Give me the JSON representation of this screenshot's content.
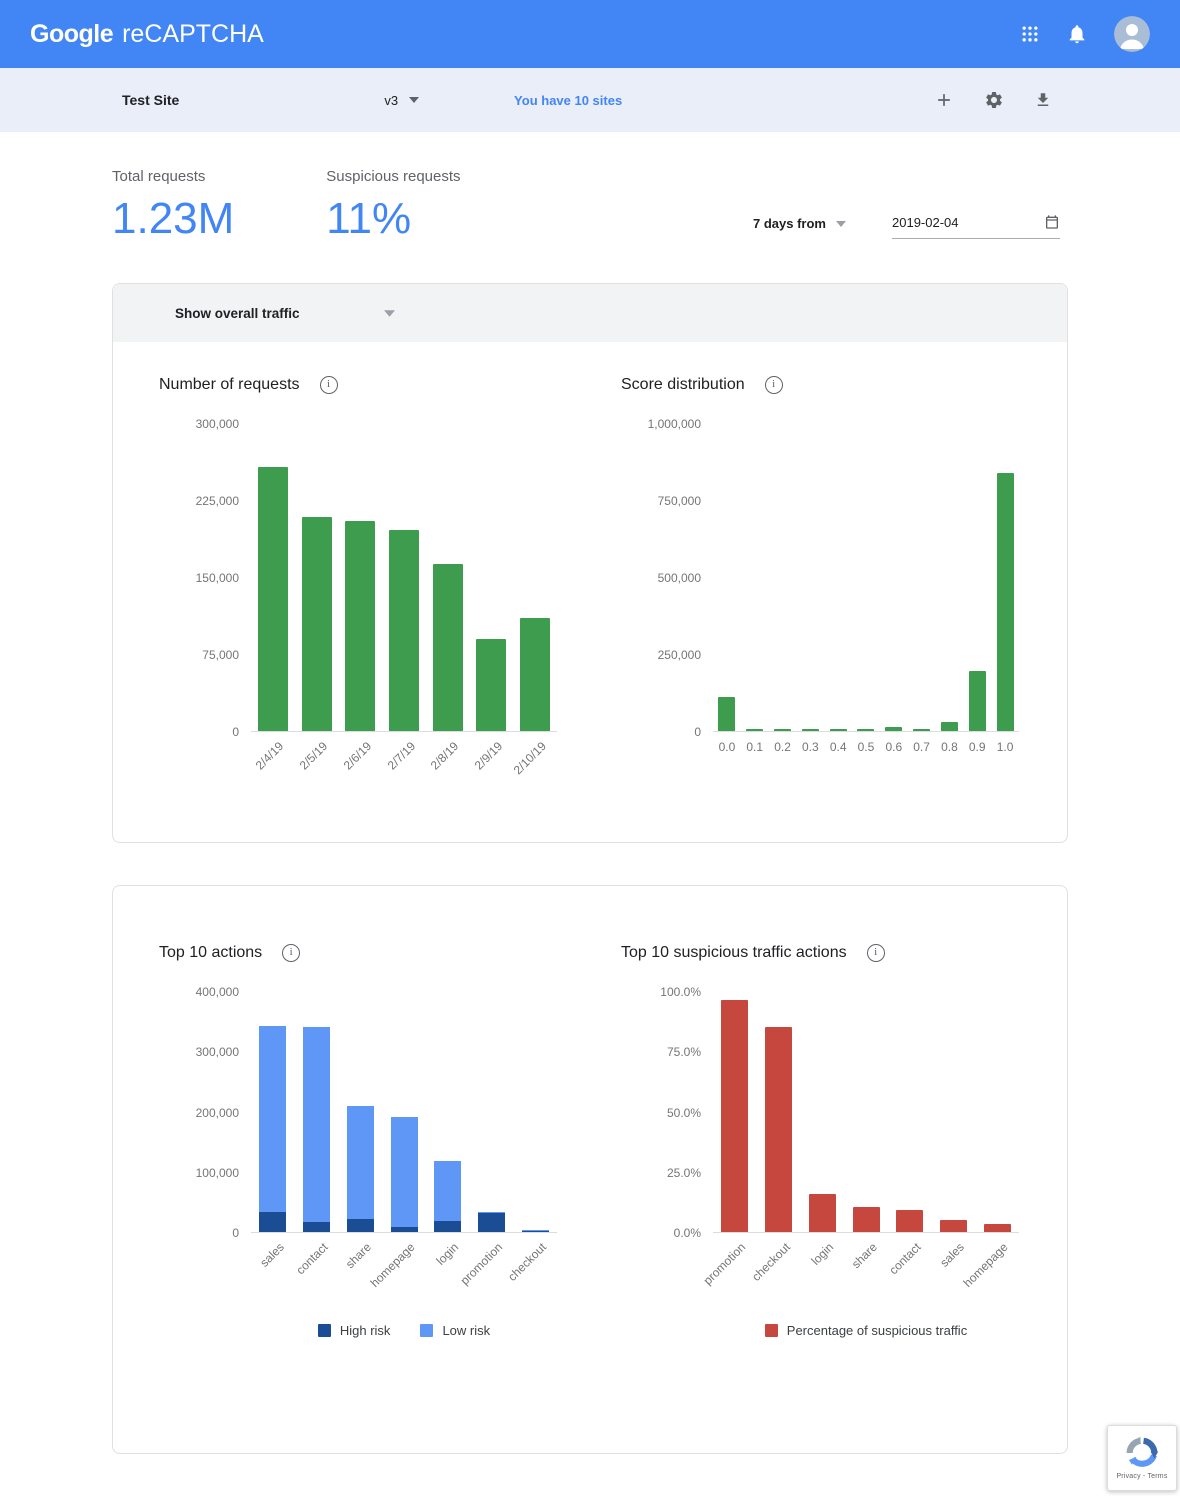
{
  "header": {
    "logo_google": "Google",
    "logo_product": "reCAPTCHA"
  },
  "toolbar": {
    "site_name": "Test Site",
    "version": "v3",
    "sites_link": "You have 10 sites"
  },
  "stats": {
    "total_label": "Total requests",
    "total_value": "1.23M",
    "suspicious_label": "Suspicious requests",
    "suspicious_value": "11%",
    "range_label": "7 days from",
    "date_value": "2019-02-04"
  },
  "filter": {
    "label": "Show overall traffic"
  },
  "badge": {
    "privacy_terms": "Privacy - Terms"
  },
  "colors": {
    "accent": "#4285f4",
    "header_bg": "#4285f4",
    "toolbar_bg": "#e9eef8",
    "green": "#3e9c4f",
    "blue_dark": "#1b4d94",
    "blue_light": "#5e97f6",
    "red": "#c5473e"
  },
  "icons": [
    "apps-grid-icon",
    "notifications-icon",
    "avatar",
    "add-icon",
    "settings-icon",
    "download-icon",
    "dropdown-arrow-icon",
    "calendar-icon",
    "info-icon",
    "recaptcha-icon"
  ],
  "chart_data": [
    {
      "id": "requests",
      "type": "bar",
      "title": "Number of requests",
      "categories": [
        "2/4/19",
        "2/5/19",
        "2/6/19",
        "2/7/19",
        "2/8/19",
        "2/9/19",
        "2/10/19"
      ],
      "values": [
        258000,
        209000,
        205000,
        196000,
        163000,
        90000,
        110000
      ],
      "ylim": [
        0,
        300000
      ],
      "yticks": [
        {
          "v": 0,
          "label": "0"
        },
        {
          "v": 75000,
          "label": "75,000"
        },
        {
          "v": 150000,
          "label": "150,000"
        },
        {
          "v": 225000,
          "label": "225,000"
        },
        {
          "v": 300000,
          "label": "300,000"
        }
      ],
      "bar_color": "#3e9c4f",
      "rotate_labels": true,
      "grid": false
    },
    {
      "id": "score",
      "type": "bar",
      "title": "Score distribution",
      "categories": [
        "0.0",
        "0.1",
        "0.2",
        "0.3",
        "0.4",
        "0.5",
        "0.6",
        "0.7",
        "0.8",
        "0.9",
        "1.0"
      ],
      "values": [
        111000,
        5000,
        6000,
        7000,
        5000,
        6000,
        12000,
        8000,
        28000,
        195000,
        840000
      ],
      "ylim": [
        0,
        1000000
      ],
      "yticks": [
        {
          "v": 0,
          "label": "0"
        },
        {
          "v": 250000,
          "label": "250,000"
        },
        {
          "v": 500000,
          "label": "500,000"
        },
        {
          "v": 750000,
          "label": "750,000"
        },
        {
          "v": 1000000,
          "label": "1,000,000"
        }
      ],
      "bar_color": "#3e9c4f",
      "rotate_labels": false,
      "grid": false
    },
    {
      "id": "actions",
      "type": "stacked-bar",
      "title": "Top 10 actions",
      "categories": [
        "sales",
        "contact",
        "share",
        "homepage",
        "login",
        "promotion",
        "checkout"
      ],
      "series": [
        {
          "name": "High risk",
          "color": "#1b4d94",
          "values": [
            33000,
            16000,
            21000,
            8000,
            18000,
            31000,
            1500
          ]
        },
        {
          "name": "Low risk",
          "color": "#5e97f6",
          "values": [
            310000,
            325000,
            189000,
            184000,
            100000,
            2000,
            1800
          ]
        }
      ],
      "ylim": [
        0,
        400000
      ],
      "yticks": [
        {
          "v": 0,
          "label": "0"
        },
        {
          "v": 100000,
          "label": "100,000"
        },
        {
          "v": 200000,
          "label": "200,000"
        },
        {
          "v": 300000,
          "label": "300,000"
        },
        {
          "v": 400000,
          "label": "400,000"
        }
      ],
      "rotate_labels": true,
      "legend_position": "bottom",
      "grid": false
    },
    {
      "id": "suspicious",
      "type": "bar",
      "title": "Top 10 suspicious traffic actions",
      "categories": [
        "promotion",
        "checkout",
        "login",
        "share",
        "contact",
        "sales",
        "homepage"
      ],
      "values": [
        96.5,
        85.5,
        16,
        10.5,
        9,
        5,
        3.5
      ],
      "ylim": [
        0,
        100
      ],
      "yticks": [
        {
          "v": 0,
          "label": "0.0%"
        },
        {
          "v": 25,
          "label": "25.0%"
        },
        {
          "v": 50,
          "label": "50.0%"
        },
        {
          "v": 75,
          "label": "75.0%"
        },
        {
          "v": 100,
          "label": "100.0%"
        }
      ],
      "bar_color": "#c5473e",
      "rotate_labels": true,
      "legend_label": "Percentage of suspicious traffic",
      "legend_position": "bottom",
      "grid": false
    }
  ]
}
